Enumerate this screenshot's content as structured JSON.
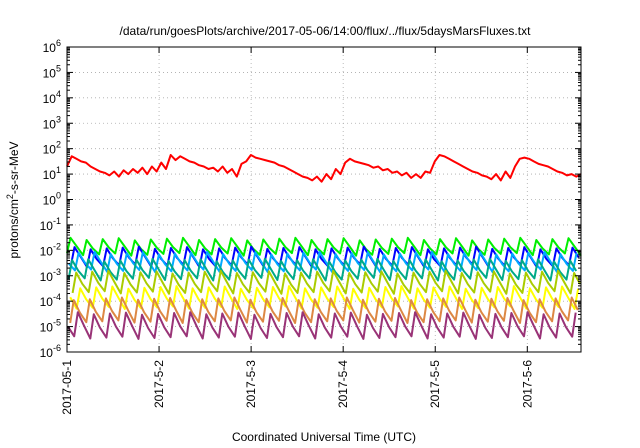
{
  "chart_data": {
    "type": "line",
    "title": "/data/run/goesPlots/archive/2017-05-06/14:00/flux/../flux/5daysMarsFluxes.txt",
    "xlabel": "Coordinated Universal Time (UTC)",
    "ylabel": "protons/cm2-s-sr-MeV",
    "ylabel_parts": {
      "base": "protons/cm",
      "sup": "2",
      "rest": "-s-sr-MeV"
    },
    "yscale": "log",
    "ylim_exp": [
      -6,
      6
    ],
    "ytick_labels": [
      {
        "base": "10",
        "exp": "-6"
      },
      {
        "base": "10",
        "exp": "-5"
      },
      {
        "base": "10",
        "exp": "-4"
      },
      {
        "base": "10",
        "exp": "-3"
      },
      {
        "base": "10",
        "exp": "-2"
      },
      {
        "base": "10",
        "exp": "-1"
      },
      {
        "base": "10",
        "exp": "0"
      },
      {
        "base": "10",
        "exp": "1"
      },
      {
        "base": "10",
        "exp": "2"
      },
      {
        "base": "10",
        "exp": "3"
      },
      {
        "base": "10",
        "exp": "4"
      },
      {
        "base": "10",
        "exp": "5"
      },
      {
        "base": "10",
        "exp": "6"
      }
    ],
    "x_range_days": [
      "2017-05-01",
      "2017-05-06 14:00"
    ],
    "xtick_labels": [
      "2017-05-1",
      "2017-5-2",
      "2017-5-3",
      "2017-5-4",
      "2017-5-5",
      "2017-5-6"
    ],
    "grid": true,
    "legend": "none",
    "series": [
      {
        "color": "#ff0000",
        "values_log10": [
          1.3,
          1.7,
          1.6,
          1.5,
          1.45,
          1.3,
          1.2,
          1.1,
          1.05,
          0.95,
          1.1,
          0.9,
          1.15,
          1.0,
          1.2,
          1.05,
          1.25,
          1.0,
          1.3,
          1.1,
          1.45,
          1.2,
          1.75,
          1.55,
          1.7,
          1.6,
          1.5,
          1.45,
          1.35,
          1.3,
          1.2,
          1.25,
          1.1,
          1.3,
          1.05,
          1.2,
          0.9,
          1.4,
          1.5,
          1.75,
          1.65,
          1.6,
          1.55,
          1.5,
          1.45,
          1.35,
          1.3,
          1.2,
          1.1,
          1.0,
          0.9,
          0.85,
          0.75,
          0.9,
          0.7,
          1.0,
          0.8,
          1.2,
          1.0,
          1.45,
          1.6,
          1.5,
          1.45,
          1.4,
          1.35,
          1.25,
          1.3,
          1.15,
          1.2,
          1.05,
          1.1,
          0.95,
          1.05,
          0.85,
          1.0,
          0.85,
          1.1,
          1.05,
          1.5,
          1.75,
          1.7,
          1.6,
          1.5,
          1.4,
          1.3,
          1.2,
          1.1,
          1.05,
          0.95,
          0.9,
          0.8,
          1.0,
          0.75,
          1.1,
          0.85,
          1.3,
          1.6,
          1.65,
          1.6,
          1.5,
          1.4,
          1.35,
          1.3,
          1.2,
          1.1,
          1.05,
          0.95,
          1.0,
          0.9,
          1.0
        ]
      },
      {
        "color": "#00ee00",
        "base": -1.85,
        "amp": 0.6,
        "phase": 0.0
      },
      {
        "color": "#0000ff",
        "base": -2.25,
        "amp": 0.7,
        "phase": 0.25
      },
      {
        "color": "#00aaff",
        "base": -2.45,
        "amp": 0.7,
        "phase": 0.5
      },
      {
        "color": "#00aa88",
        "base": -2.75,
        "amp": 0.75,
        "phase": 0.1
      },
      {
        "color": "#aacc00",
        "base": -3.25,
        "amp": 0.8,
        "phase": 0.35
      },
      {
        "color": "#ffff00",
        "base": -3.85,
        "amp": 0.8,
        "phase": 0.6
      },
      {
        "color": "#dd8844",
        "base": -4.35,
        "amp": 0.9,
        "phase": 0.2
      },
      {
        "color": "#993377",
        "base": -4.95,
        "amp": 0.95,
        "phase": 0.45
      }
    ]
  }
}
